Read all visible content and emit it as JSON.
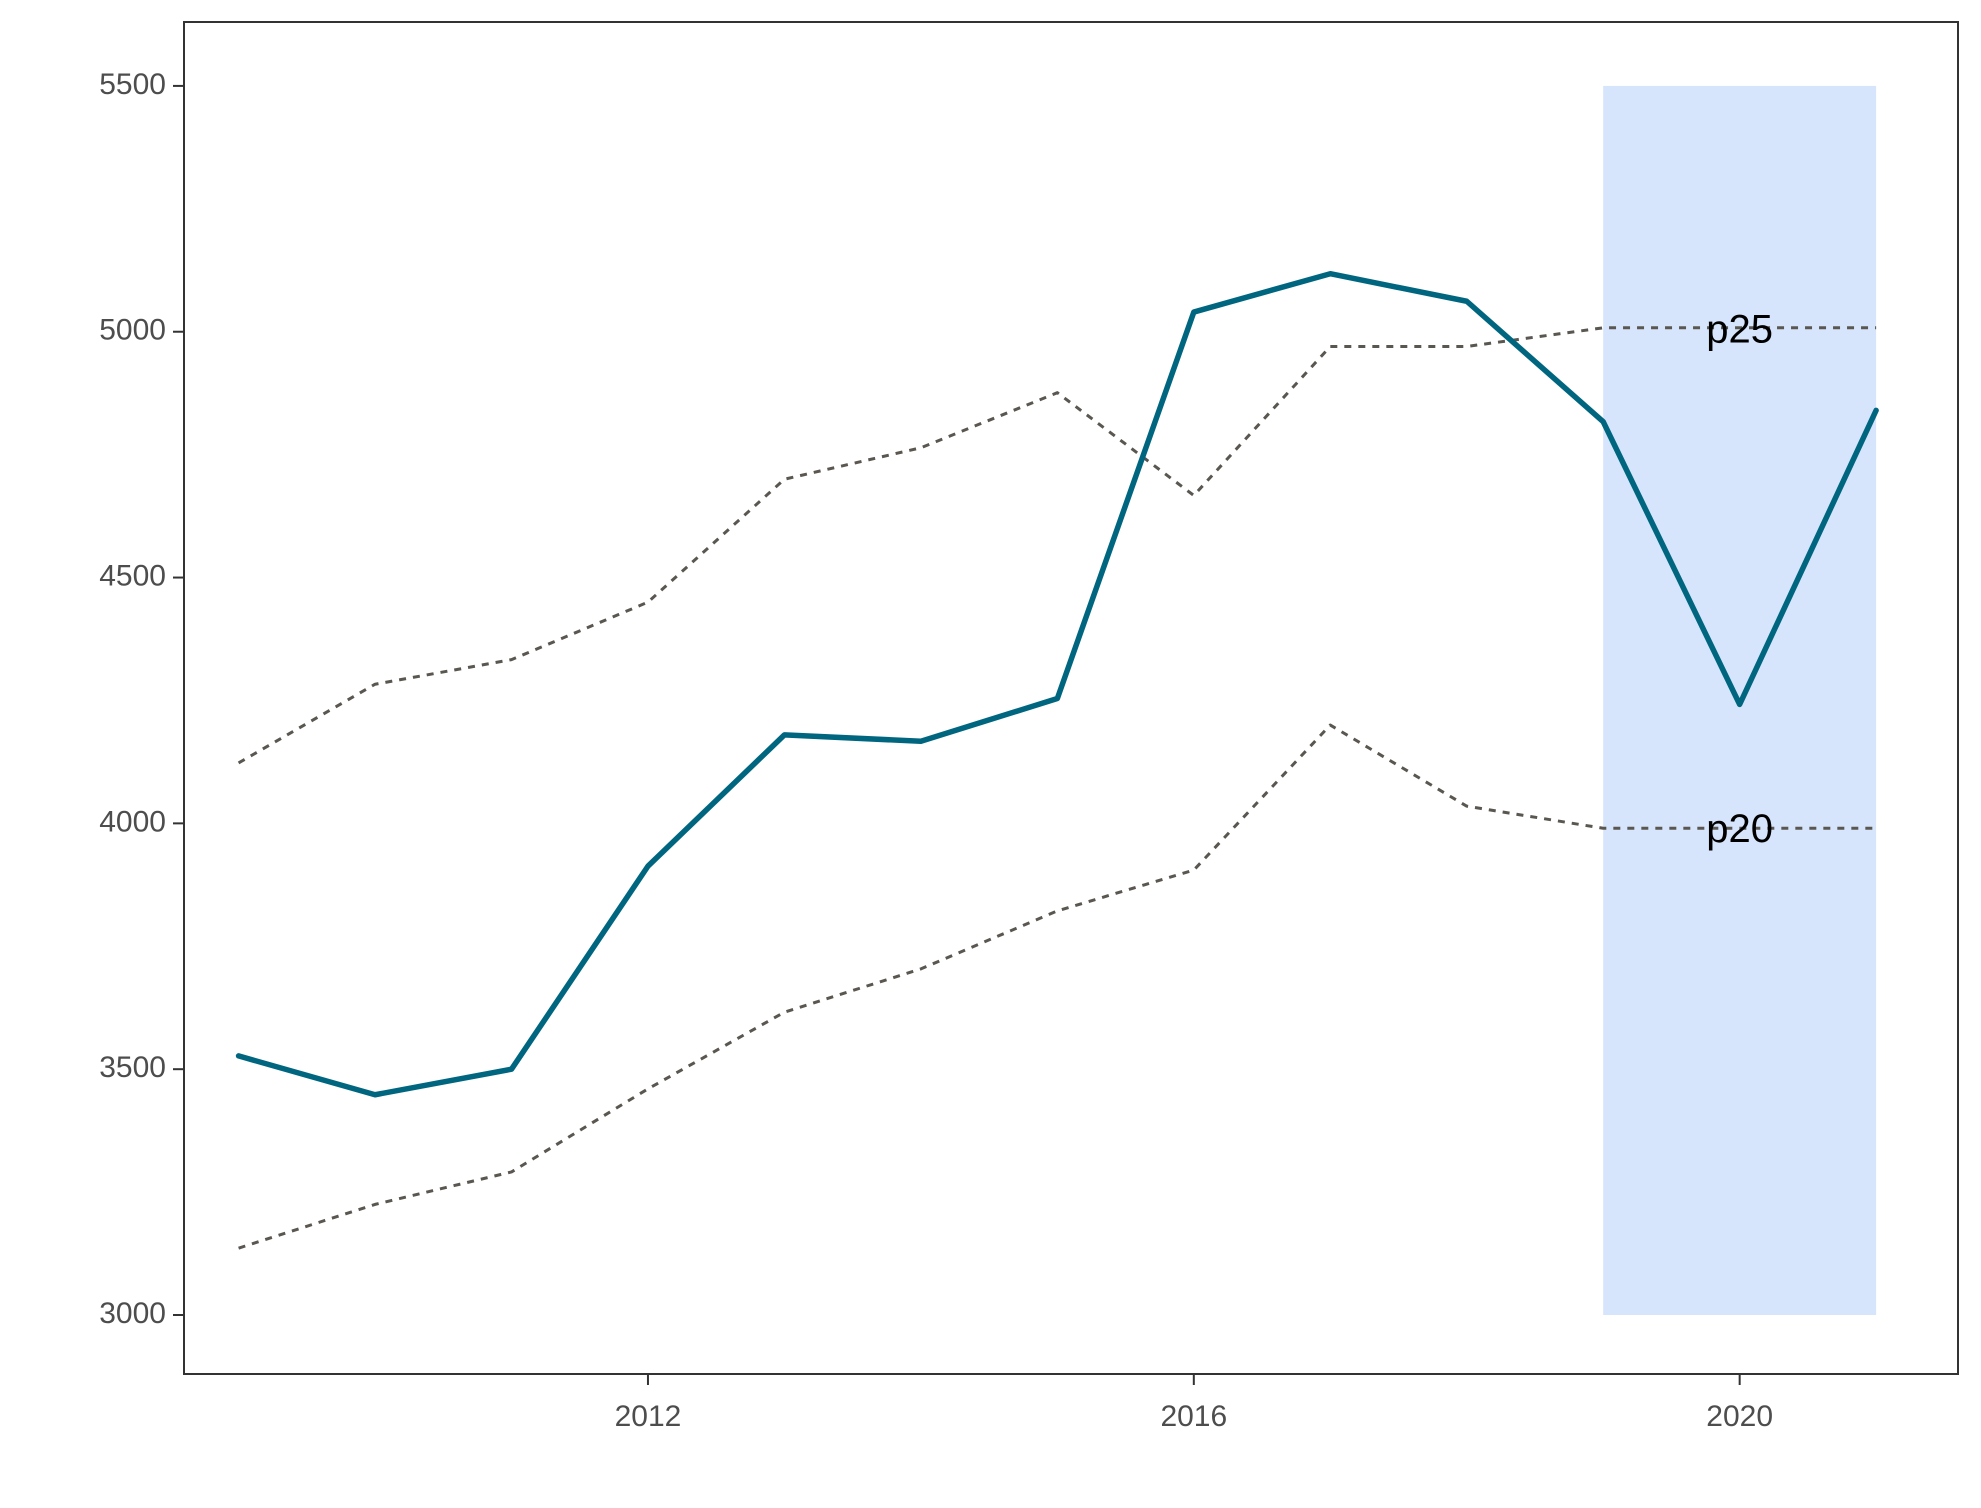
{
  "chart_data": {
    "type": "line",
    "title": "",
    "xlabel": "",
    "ylabel": "",
    "xlim": [
      2008.6,
      2021.6
    ],
    "ylim": [
      2880,
      5630
    ],
    "grid": false,
    "x_ticks": [
      2012,
      2016,
      2020
    ],
    "y_ticks": [
      3000,
      3500,
      4000,
      4500,
      5000,
      5500
    ],
    "x": [
      2009,
      2010,
      2011,
      2012,
      2013,
      2014,
      2015,
      2016,
      2017,
      2018,
      2019,
      2020,
      2021
    ],
    "series": [
      {
        "role": "main",
        "style": "solid",
        "color": "#006680",
        "values": [
          3527,
          3448,
          3500,
          3913,
          4180,
          4167,
          4254,
          5040,
          5118,
          5062,
          4817,
          4242,
          4840
        ]
      },
      {
        "role": "upper-band",
        "style": "dotted",
        "color": "#5a5650",
        "values": [
          4123,
          4283,
          4333,
          4450,
          4700,
          4764,
          4876,
          4667,
          4970,
          4970,
          5008,
          5008,
          5008
        ]
      },
      {
        "role": "lower-band",
        "style": "dotted",
        "color": "#5a5650",
        "values": [
          3136,
          3225,
          3291,
          3460,
          3616,
          3704,
          3822,
          3905,
          4200,
          4035,
          3990,
          3990,
          3990
        ]
      }
    ],
    "highlight_region": {
      "x": [
        2019,
        2021
      ],
      "y": [
        3000,
        5500
      ],
      "color": "#d6e5fc"
    },
    "annotations": [
      {
        "text": "p25",
        "x": 2020,
        "y": 5000
      },
      {
        "text": "p20",
        "x": 2020,
        "y": 3984
      }
    ]
  }
}
